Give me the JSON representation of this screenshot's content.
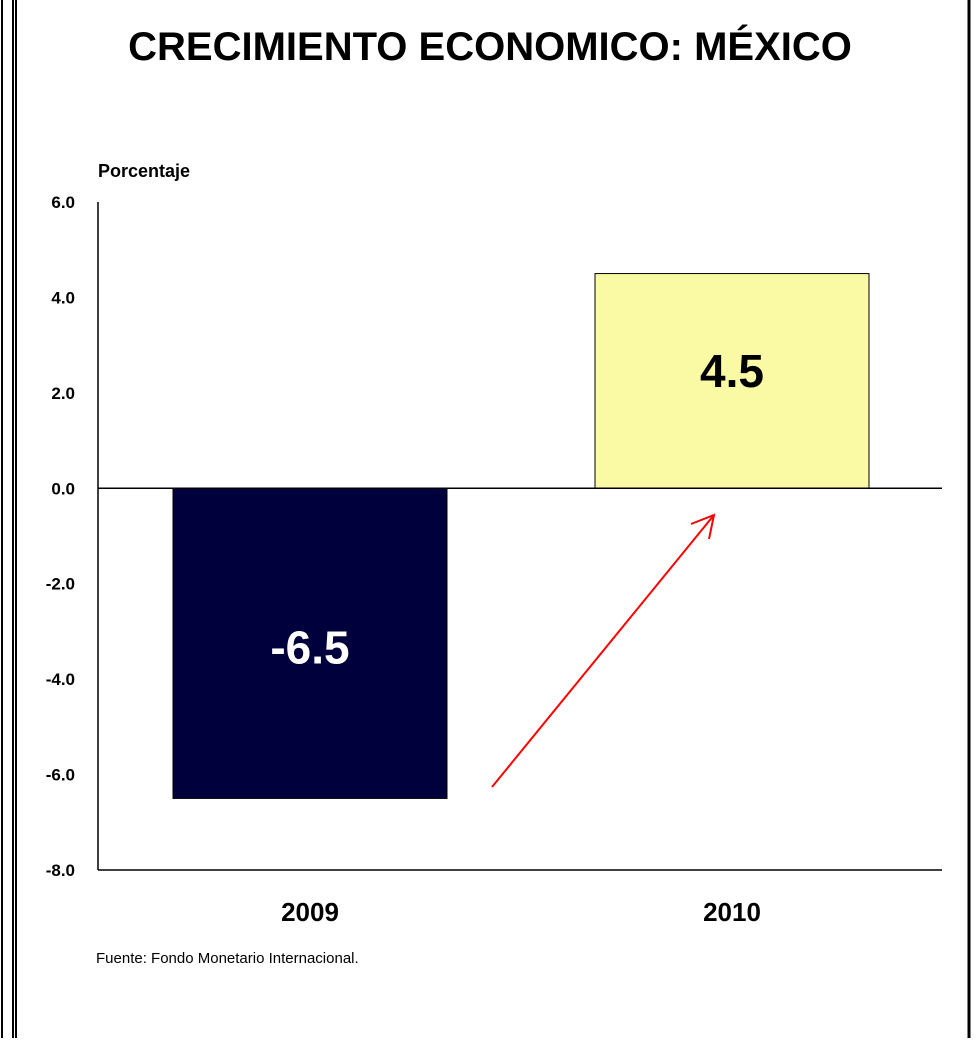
{
  "chart_data": {
    "type": "bar",
    "title": "CRECIMIENTO ECONOMICO: MÉXICO",
    "ylabel": "Porcentaje",
    "xlabel": "",
    "categories": [
      "2009",
      "2010"
    ],
    "values": [
      -6.5,
      4.5
    ],
    "data_labels": [
      "-6.5",
      "4.5"
    ],
    "ylim": [
      -8.0,
      6.0
    ],
    "yticks": [
      "6.0",
      "4.0",
      "2.0",
      "0.0",
      "-2.0",
      "-4.0",
      "-6.0",
      "-8.0"
    ],
    "bar_colors": [
      "#00003c",
      "#fbfaa4"
    ],
    "data_label_colors": [
      "#ffffff",
      "#000000"
    ],
    "grid": false,
    "legend": "none",
    "annotation": "red-arrow",
    "annotation_color": "#ff0000",
    "source": "Fuente:  Fondo Monetario Internacional."
  }
}
